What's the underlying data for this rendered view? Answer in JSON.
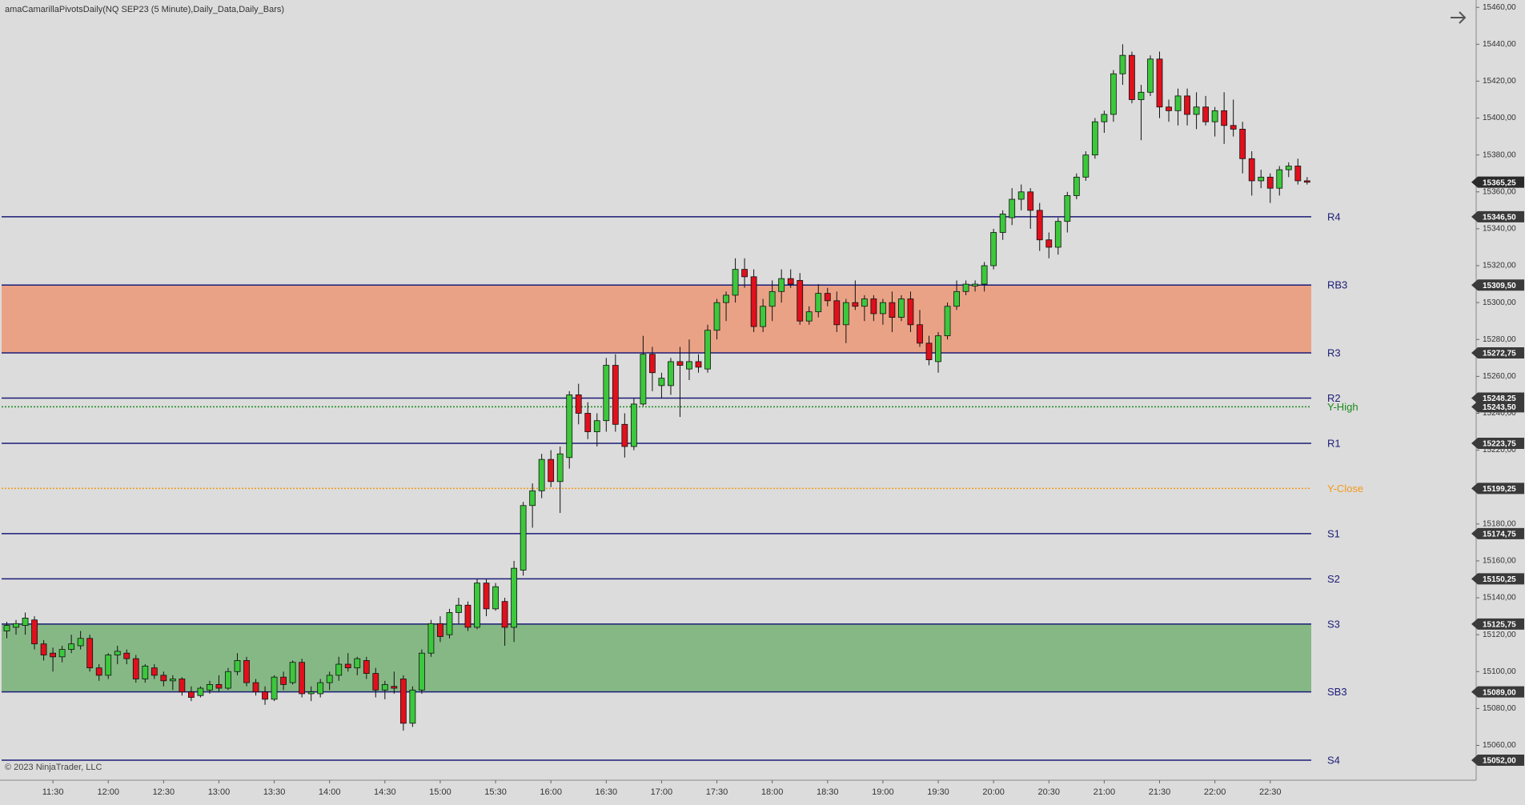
{
  "chart_data": {
    "type": "candlestick",
    "title": "amaCamarillaPivotsDaily(NQ SEP23 (5 Minute),Daily_Data,Daily_Bars)",
    "copyright": "© 2023 NinjaTrader, LLC",
    "up_color": "#3cc83c",
    "down_color": "#e0101c",
    "grid": false,
    "x": [
      "11:05",
      "11:10",
      "11:15",
      "11:20",
      "11:25",
      "11:30",
      "11:35",
      "11:40",
      "11:45",
      "11:50",
      "11:55",
      "12:00",
      "12:05",
      "12:10",
      "12:15",
      "12:20",
      "12:25",
      "12:30",
      "12:35",
      "12:40",
      "12:45",
      "12:50",
      "12:55",
      "13:00",
      "13:05",
      "13:10",
      "13:15",
      "13:20",
      "13:25",
      "13:30",
      "13:35",
      "13:40",
      "13:45",
      "13:50",
      "13:55",
      "14:00",
      "14:05",
      "14:10",
      "14:15",
      "14:20",
      "14:25",
      "14:30",
      "14:35",
      "14:40",
      "14:45",
      "14:50",
      "14:55",
      "15:00",
      "15:05",
      "15:10",
      "15:15",
      "15:20",
      "15:25",
      "15:30",
      "15:35",
      "15:40",
      "15:45",
      "15:50",
      "15:55",
      "16:00",
      "16:05",
      "16:10",
      "16:15",
      "16:20",
      "16:25",
      "16:30",
      "16:35",
      "16:40",
      "16:45",
      "16:50",
      "16:55",
      "17:00",
      "17:05",
      "17:10",
      "17:15",
      "17:20",
      "17:25",
      "17:30",
      "17:35",
      "17:40",
      "17:45",
      "17:50",
      "17:55",
      "18:00",
      "18:05",
      "18:10",
      "18:15",
      "18:20",
      "18:25",
      "18:30",
      "18:35",
      "18:40",
      "18:45",
      "18:50",
      "18:55",
      "19:00",
      "19:05",
      "19:10",
      "19:15",
      "19:20",
      "19:25",
      "19:30",
      "19:35",
      "19:40",
      "19:45",
      "19:50",
      "19:55",
      "20:00",
      "20:05",
      "20:10",
      "20:15",
      "20:20",
      "20:25",
      "20:30",
      "20:35",
      "20:40",
      "20:45",
      "20:50",
      "20:55",
      "21:00",
      "21:05",
      "21:10",
      "21:15",
      "21:20",
      "21:25",
      "21:30",
      "21:35",
      "21:40",
      "21:45",
      "21:50",
      "21:55",
      "22:00",
      "22:05",
      "22:10",
      "22:15",
      "22:20",
      "22:25",
      "22:30",
      "22:35",
      "22:40",
      "22:45",
      "22:50"
    ],
    "open": [
      15122,
      15124,
      15125,
      15128,
      15115,
      15110,
      15108,
      15112,
      15114,
      15118,
      15102,
      15098,
      15109,
      15110,
      15107,
      15096,
      15102,
      15098,
      15095,
      15096,
      15089,
      15087,
      15090,
      15093,
      15091,
      15100,
      15106,
      15094,
      15089,
      15085,
      15097,
      15094,
      15105,
      15088,
      15088,
      15094,
      15098,
      15104,
      15102,
      15106,
      15099,
      15090,
      15092,
      15096,
      15072,
      15090,
      15110,
      15126,
      15120,
      15132,
      15136,
      15124,
      15148,
      15134,
      15138,
      15124,
      15155,
      15190,
      15198,
      15215,
      15203,
      15216,
      15250,
      15240,
      15230,
      15236,
      15266,
      15234,
      15222,
      15245,
      15272,
      15255,
      15255,
      15268,
      15264,
      15268,
      15264,
      15285,
      15300,
      15304,
      15318,
      15314,
      15287,
      15298,
      15306,
      15313,
      15312,
      15290,
      15295,
      15305,
      15301,
      15288,
      15300,
      15298,
      15302,
      15294,
      15300,
      15292,
      15302,
      15288,
      15278,
      15268,
      15282,
      15298,
      15306,
      15309,
      15310,
      15320,
      15338,
      15346,
      15356,
      15360,
      15350,
      15334,
      15330,
      15344,
      15358,
      15368,
      15380,
      15398,
      15402,
      15424,
      15434,
      15410,
      15414,
      15432,
      15406,
      15404,
      15412,
      15402,
      15406,
      15398,
      15404,
      15396,
      15394,
      15378,
      15366,
      15368,
      15362,
      15372,
      15374,
      15366
    ],
    "high": [
      15127,
      15128,
      15132,
      15130,
      15117,
      15113,
      15114,
      15120,
      15122,
      15120,
      15104,
      15110,
      15114,
      15112,
      15109,
      15104,
      15104,
      15100,
      15098,
      15097,
      15092,
      15092,
      15095,
      15098,
      15102,
      15110,
      15108,
      15096,
      15092,
      15098,
      15100,
      15106,
      15107,
      15092,
      15096,
      15100,
      15108,
      15110,
      15108,
      15108,
      15102,
      15095,
      15100,
      15098,
      15092,
      15112,
      15128,
      15130,
      15134,
      15140,
      15138,
      15150,
      15150,
      15148,
      15140,
      15160,
      15192,
      15202,
      15218,
      15220,
      15222,
      15252,
      15256,
      15246,
      15240,
      15270,
      15272,
      15240,
      15248,
      15282,
      15276,
      15262,
      15270,
      15276,
      15280,
      15272,
      15288,
      15302,
      15306,
      15324,
      15324,
      15318,
      15302,
      15312,
      15318,
      15318,
      15316,
      15298,
      15310,
      15308,
      15306,
      15302,
      15312,
      15304,
      15304,
      15302,
      15306,
      15304,
      15306,
      15296,
      15282,
      15284,
      15300,
      15312,
      15312,
      15312,
      15322,
      15340,
      15350,
      15362,
      15364,
      15362,
      15354,
      15338,
      15346,
      15360,
      15370,
      15382,
      15400,
      15404,
      15426,
      15440,
      15436,
      15418,
      15434,
      15436,
      15410,
      15416,
      15416,
      15414,
      15412,
      15406,
      15414,
      15410,
      15398,
      15382,
      15372,
      15370,
      15374,
      15376,
      15378,
      15368
    ],
    "low": [
      15118,
      15120,
      15120,
      15112,
      15106,
      15100,
      15105,
      15110,
      15112,
      15100,
      15095,
      15096,
      15104,
      15104,
      15094,
      15094,
      15096,
      15092,
      15090,
      15087,
      15084,
      15086,
      15088,
      15089,
      15090,
      15098,
      15092,
      15087,
      15082,
      15084,
      15090,
      15093,
      15086,
      15084,
      15086,
      15090,
      15095,
      15100,
      15098,
      15096,
      15086,
      15085,
      15088,
      15068,
      15070,
      15088,
      15108,
      15116,
      15118,
      15126,
      15122,
      15123,
      15130,
      15133,
      15114,
      15116,
      15152,
      15178,
      15194,
      15200,
      15186,
      15210,
      15234,
      15226,
      15222,
      15230,
      15230,
      15216,
      15220,
      15244,
      15252,
      15248,
      15250,
      15238,
      15258,
      15262,
      15262,
      15280,
      15290,
      15300,
      15308,
      15284,
      15284,
      15290,
      15300,
      15308,
      15288,
      15288,
      15292,
      15298,
      15284,
      15278,
      15296,
      15290,
      15290,
      15288,
      15284,
      15290,
      15284,
      15276,
      15266,
      15262,
      15280,
      15296,
      15304,
      15306,
      15306,
      15318,
      15334,
      15342,
      15350,
      15340,
      15328,
      15324,
      15326,
      15338,
      15356,
      15366,
      15378,
      15392,
      15398,
      15418,
      15408,
      15388,
      15412,
      15400,
      15398,
      15396,
      15396,
      15394,
      15396,
      15390,
      15386,
      15390,
      15370,
      15358,
      15362,
      15354,
      15358,
      15368,
      15364,
      15364
    ],
    "close": [
      15125,
      15126,
      15129,
      15115,
      15109,
      15108,
      15112,
      15115,
      15118,
      15102,
      15098,
      15109,
      15111,
      15107,
      15096,
      15103,
      15098,
      15095,
      15096,
      15089,
      15086,
      15091,
      15093,
      15091,
      15100,
      15106,
      15094,
      15089,
      15085,
      15097,
      15093,
      15105,
      15088,
      15089,
      15094,
      15098,
      15104,
      15102,
      15107,
      15099,
      15090,
      15093,
      15091,
      15072,
      15090,
      15110,
      15126,
      15119,
      15132,
      15136,
      15124,
      15148,
      15134,
      15146,
      15124,
      15156,
      15190,
      15198,
      15215,
      15203,
      15218,
      15250,
      15240,
      15230,
      15236,
      15266,
      15234,
      15222,
      15245,
      15272,
      15262,
      15259,
      15268,
      15266,
      15268,
      15265,
      15285,
      15300,
      15304,
      15318,
      15314,
      15287,
      15298,
      15306,
      15313,
      15310,
      15290,
      15295,
      15305,
      15301,
      15288,
      15300,
      15298,
      15302,
      15294,
      15300,
      15292,
      15302,
      15288,
      15278,
      15269,
      15282,
      15298,
      15306,
      15310,
      15310,
      15320,
      15338,
      15348,
      15356,
      15360,
      15350,
      15334,
      15330,
      15344,
      15358,
      15368,
      15380,
      15398,
      15402,
      15424,
      15434,
      15410,
      15414,
      15432,
      15406,
      15404,
      15412,
      15402,
      15406,
      15398,
      15404,
      15396,
      15394,
      15378,
      15366,
      15368,
      15362,
      15372,
      15374,
      15366,
      15365.25
    ],
    "xticks": [
      "11:30",
      "12:00",
      "12:30",
      "13:00",
      "13:30",
      "14:00",
      "14:30",
      "15:00",
      "15:30",
      "16:00",
      "16:30",
      "17:00",
      "17:30",
      "18:00",
      "18:30",
      "19:00",
      "19:30",
      "20:00",
      "20:30",
      "21:00",
      "21:30",
      "22:00",
      "22:30"
    ],
    "ylim": [
      15042,
      15464
    ],
    "yticks": [
      {
        "value": 15060,
        "label": "15060,00"
      },
      {
        "value": 15080,
        "label": "15080,00"
      },
      {
        "value": 15100,
        "label": "15100,00"
      },
      {
        "value": 15120,
        "label": "15120,00"
      },
      {
        "value": 15140,
        "label": "15140,00"
      },
      {
        "value": 15160,
        "label": "15160,00"
      },
      {
        "value": 15180,
        "label": "15180,00"
      },
      {
        "value": 15200,
        "label": "15200,00"
      },
      {
        "value": 15220,
        "label": "15220,00"
      },
      {
        "value": 15240,
        "label": "15240,00"
      },
      {
        "value": 15260,
        "label": "15260,00"
      },
      {
        "value": 15280,
        "label": "15280,00"
      },
      {
        "value": 15300,
        "label": "15300,00"
      },
      {
        "value": 15320,
        "label": "15320,00"
      },
      {
        "value": 15340,
        "label": "15340,00"
      },
      {
        "value": 15360,
        "label": "15360,00"
      },
      {
        "value": 15380,
        "label": "15380,00"
      },
      {
        "value": 15400,
        "label": "15400,00"
      },
      {
        "value": 15420,
        "label": "15420,00"
      },
      {
        "value": 15440,
        "label": "15440,00"
      },
      {
        "value": 15460,
        "label": "15460,00"
      }
    ],
    "levels": [
      {
        "name": "R4",
        "value": 15346.5,
        "label": "15346,50",
        "color": "#1c1c78",
        "style": "solid"
      },
      {
        "name": "RB3",
        "value": 15309.5,
        "label": "15309,50",
        "color": "#1c1c78",
        "style": "solid",
        "band_to": "R3",
        "band_color": "#eaa286"
      },
      {
        "name": "R3",
        "value": 15272.75,
        "label": "15272,75",
        "color": "#1c1c78",
        "style": "solid"
      },
      {
        "name": "R2",
        "value": 15248.25,
        "label": "15248,25",
        "color": "#1c1c78",
        "style": "solid"
      },
      {
        "name": "Y-High",
        "value": 15243.5,
        "label": "15243,50",
        "color": "#1a8a1a",
        "style": "dotted"
      },
      {
        "name": "R1",
        "value": 15223.75,
        "label": "15223,75",
        "color": "#1c1c78",
        "style": "solid"
      },
      {
        "name": "Y-Close",
        "value": 15199.25,
        "label": "15199,25",
        "color": "#f29a1a",
        "style": "dotted"
      },
      {
        "name": "S1",
        "value": 15174.75,
        "label": "15174,75",
        "color": "#1c1c78",
        "style": "solid"
      },
      {
        "name": "S2",
        "value": 15150.25,
        "label": "15150,25",
        "color": "#1c1c78",
        "style": "solid"
      },
      {
        "name": "S3",
        "value": 15125.75,
        "label": "15125,75",
        "color": "#1c1c78",
        "style": "solid",
        "band_to": "SB3",
        "band_color": "#86b886"
      },
      {
        "name": "SB3",
        "value": 15089,
        "label": "15089,00",
        "color": "#1c1c78",
        "style": "solid"
      },
      {
        "name": "S4",
        "value": 15052,
        "label": "15052,00",
        "color": "#1c1c78",
        "style": "solid"
      }
    ],
    "last_price": 15365.25,
    "last_price_label": "15365,25"
  }
}
